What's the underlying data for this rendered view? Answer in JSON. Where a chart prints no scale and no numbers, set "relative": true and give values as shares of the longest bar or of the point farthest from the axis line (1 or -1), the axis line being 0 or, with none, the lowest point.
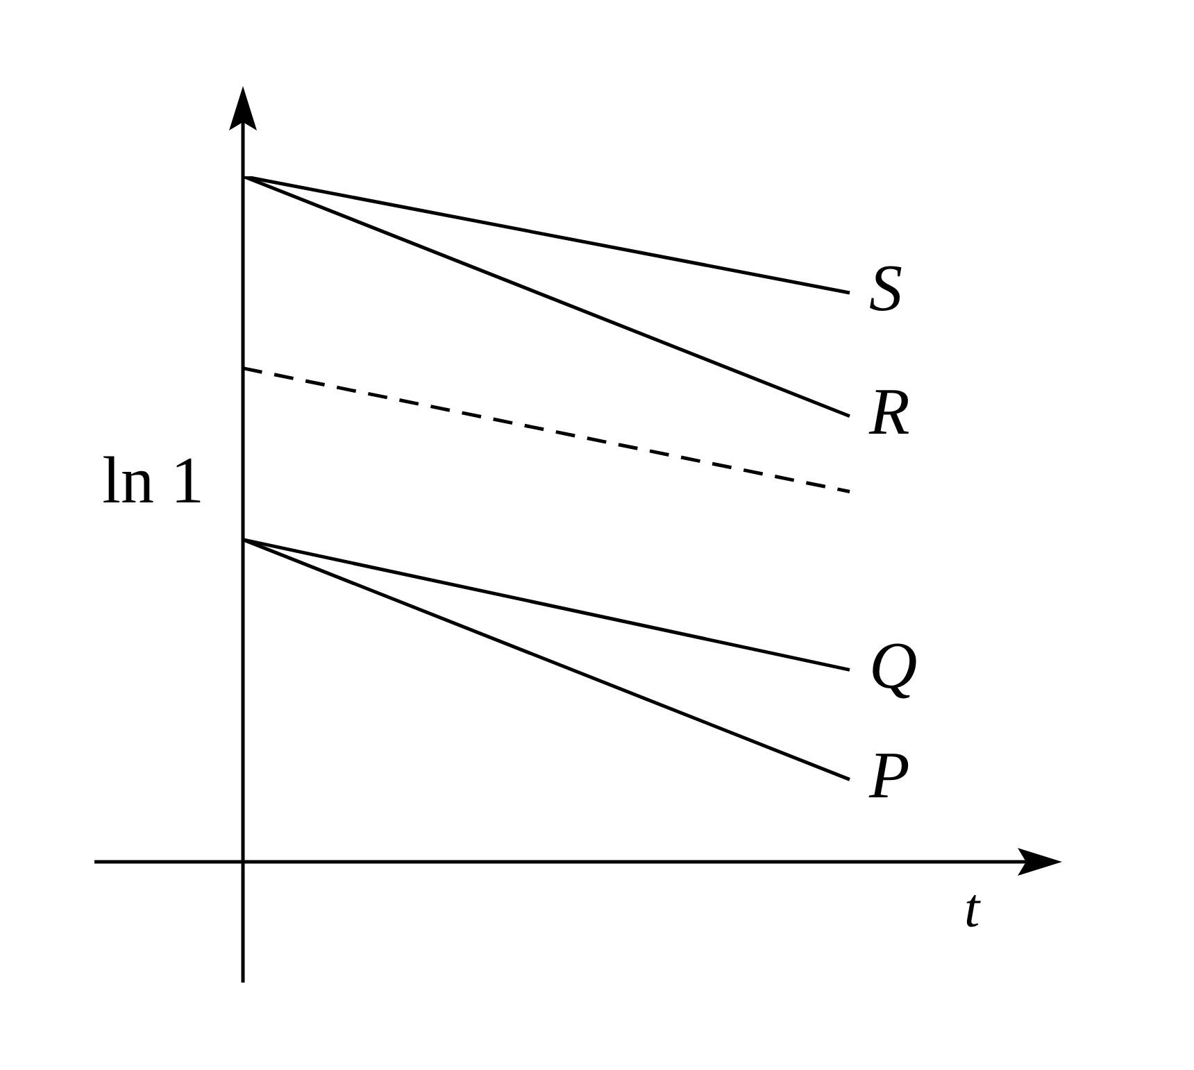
{
  "chart_data": {
    "type": "line",
    "relative": true,
    "ylabel": "ln 1",
    "xlabel": "t",
    "categories": [
      null,
      null
    ],
    "tick_labels": false,
    "marker": "none",
    "series": [
      {
        "name": "S",
        "color": "#000000",
        "values": [
          1,
          0.83
        ]
      },
      {
        "name": "R",
        "color": "#000000",
        "values": [
          1,
          0.65
        ]
      },
      {
        "color": "#000000",
        "values": [
          0.72,
          0.54
        ],
        "line_style": "dashed"
      },
      {
        "name": "Q",
        "color": "#000000",
        "values": [
          0.47,
          0.28
        ]
      },
      {
        "name": "P",
        "color": "#000000",
        "values": [
          0.47,
          0.12
        ]
      }
    ]
  }
}
